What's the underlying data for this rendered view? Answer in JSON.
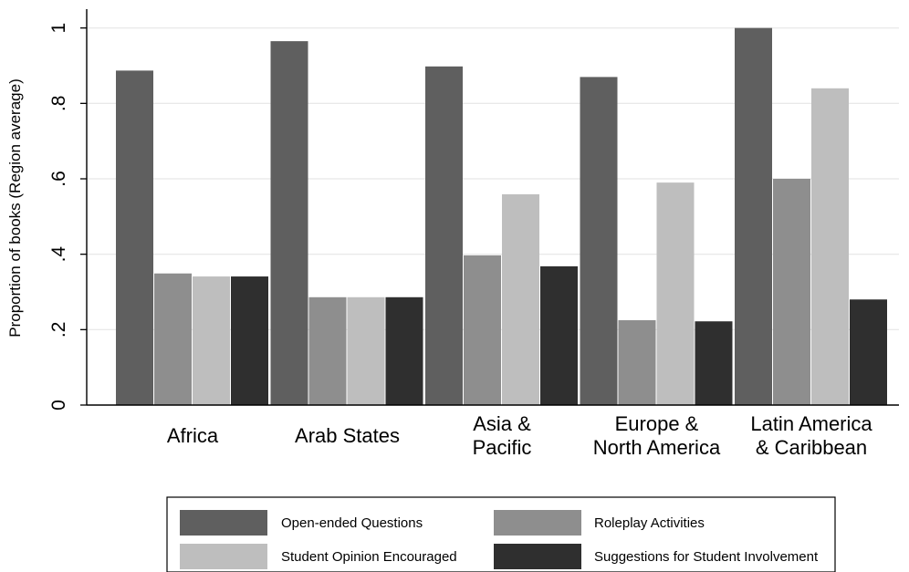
{
  "chart_data": {
    "type": "bar",
    "title": "",
    "xlabel": "",
    "ylabel": "Proportion of books (Region average)",
    "ylim": [
      0,
      1.05
    ],
    "yticks": [
      0,
      0.2,
      0.4,
      0.6,
      0.8,
      1
    ],
    "ytick_labels": [
      "0",
      ".2",
      ".4",
      ".6",
      ".8",
      "1"
    ],
    "grid": true,
    "legend_position": "bottom",
    "categories": [
      [
        "Africa"
      ],
      [
        "Arab States"
      ],
      [
        "Asia &",
        "Pacific"
      ],
      [
        "Europe &",
        "North America"
      ],
      [
        "Latin America",
        "& Caribbean"
      ]
    ],
    "series": [
      {
        "name": "Open-ended Questions",
        "color": "#5f5f5f",
        "values": [
          0.887,
          0.965,
          0.898,
          0.87,
          1.0
        ]
      },
      {
        "name": "Roleplay Activities",
        "color": "#8e8e8e",
        "values": [
          0.349,
          0.286,
          0.397,
          0.225,
          0.6
        ]
      },
      {
        "name": "Student Opinion Encouraged",
        "color": "#bebebe",
        "values": [
          0.341,
          0.286,
          0.559,
          0.59,
          0.84
        ]
      },
      {
        "name": "Suggestions for Student Involvement",
        "color": "#2f2f2f",
        "values": [
          0.341,
          0.286,
          0.368,
          0.222,
          0.28
        ]
      }
    ]
  }
}
